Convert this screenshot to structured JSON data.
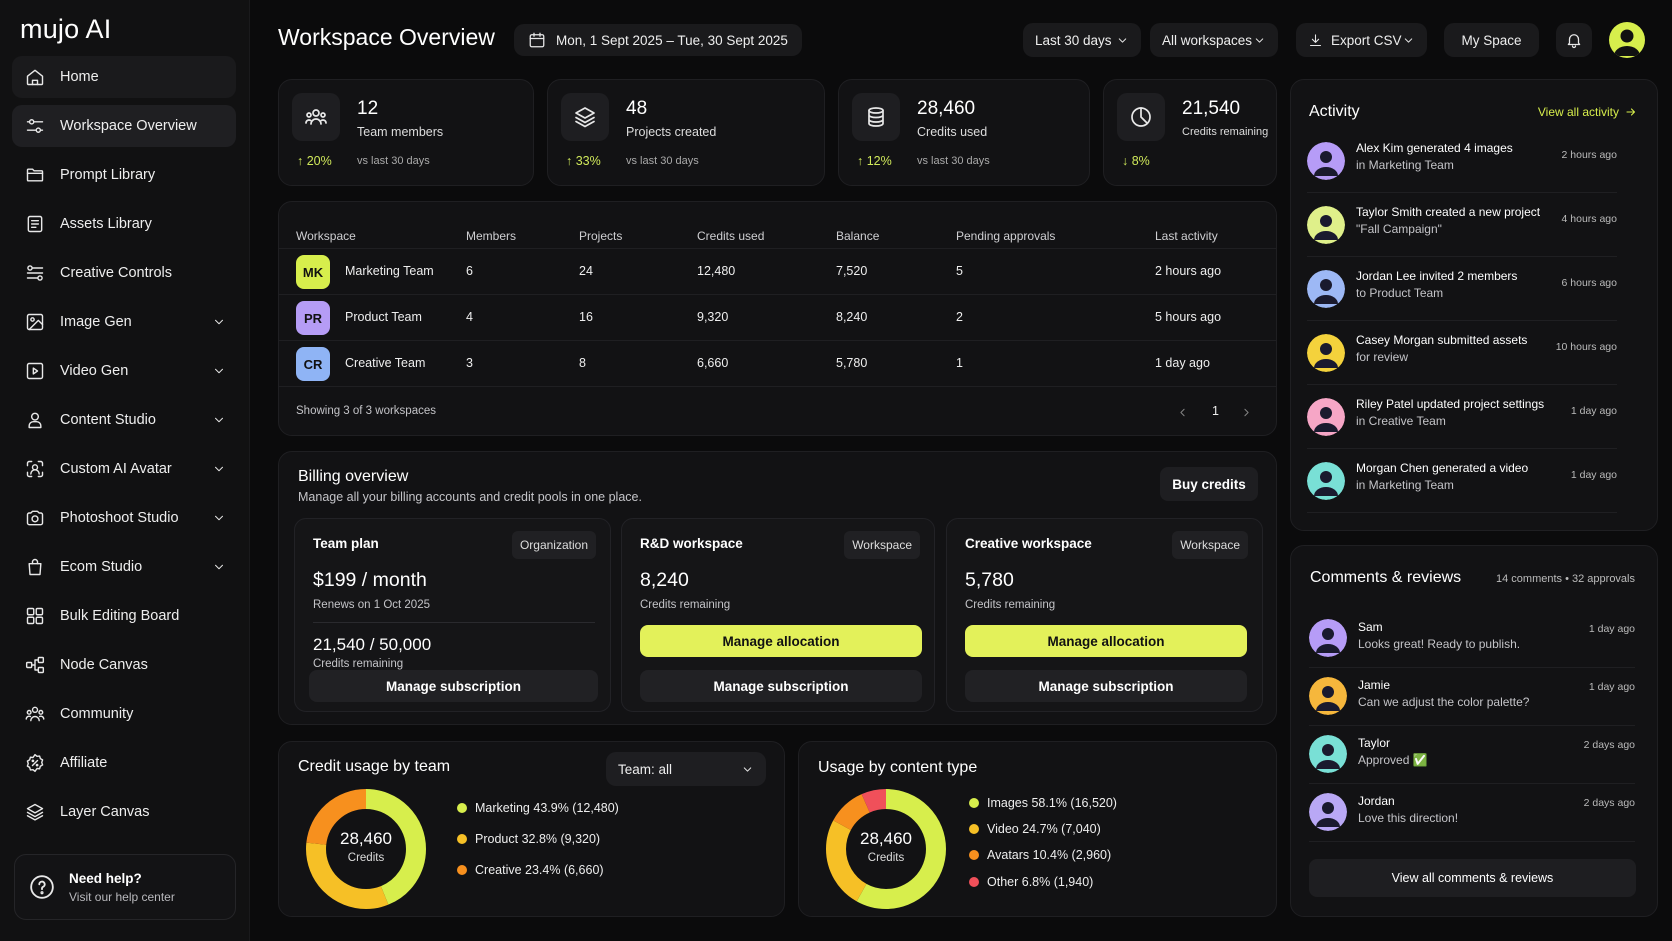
{
  "app": {
    "logo": "mujo AI"
  },
  "sidebar": {
    "items": [
      {
        "label": "Home",
        "icon": "home-icon"
      },
      {
        "label": "Workspace Overview",
        "icon": "sliders-icon"
      },
      {
        "label": "Prompt Library",
        "icon": "folder-icon"
      },
      {
        "label": "Assets Library",
        "icon": "document-icon"
      },
      {
        "label": "Creative Controls",
        "icon": "controls-icon"
      },
      {
        "label": "Image Gen",
        "icon": "image-icon"
      },
      {
        "label": "Video Gen",
        "icon": "video-icon"
      },
      {
        "label": "Content Studio",
        "icon": "person-icon"
      },
      {
        "label": "Custom AI Avatar",
        "icon": "avatar-scan-icon"
      },
      {
        "label": "Photoshoot Studio",
        "icon": "camera-icon"
      },
      {
        "label": "Ecom Studio",
        "icon": "bag-icon"
      },
      {
        "label": "Bulk Editing Board",
        "icon": "grid-icon"
      },
      {
        "label": "Node Canvas",
        "icon": "nodes-icon"
      },
      {
        "label": "Community",
        "icon": "community-icon"
      },
      {
        "label": "Affiliate",
        "icon": "percent-badge-icon"
      },
      {
        "label": "Layer Canvas",
        "icon": "layers-icon"
      }
    ],
    "help": {
      "title": "Need help?",
      "subtitle": "Visit our help center"
    }
  },
  "header": {
    "title": "Workspace Overview",
    "date_range": "Mon, 1 Sept 2025 – Tue, 30 Sept 2025",
    "period": "Last 30 days",
    "workspace_filter": "All workspaces",
    "export": "Export CSV",
    "my_space": "My Space"
  },
  "stats": [
    {
      "value": "12",
      "label": "Team members",
      "change": "20%",
      "direction": "up",
      "compare": "vs last 30 days"
    },
    {
      "value": "48",
      "label": "Projects created",
      "change": "33%",
      "direction": "up",
      "compare": "vs last 30 days"
    },
    {
      "value": "28,460",
      "label": "Credits used",
      "change": "12%",
      "direction": "up",
      "compare": "vs last 30 days"
    },
    {
      "value": "21,540",
      "label": "Credits remaining",
      "change": "8%",
      "direction": "down",
      "compare": ""
    }
  ],
  "table": {
    "columns": [
      "Workspace",
      "Members",
      "Projects",
      "Credits used",
      "Balance",
      "Pending approvals",
      "Last activity"
    ],
    "rows": [
      {
        "initials": "MK",
        "color": "#d7ee4c",
        "name": "Marketing Team",
        "members": "6",
        "projects": "24",
        "credits": "12,480",
        "balance": "7,520",
        "pending": "5",
        "last": "2 hours ago"
      },
      {
        "initials": "PR",
        "color": "#b59cf5",
        "name": "Product Team",
        "members": "4",
        "projects": "16",
        "credits": "9,320",
        "balance": "8,240",
        "pending": "2",
        "last": "5 hours ago"
      },
      {
        "initials": "CR",
        "color": "#8fb4f5",
        "name": "Creative Team",
        "members": "3",
        "projects": "8",
        "credits": "6,660",
        "balance": "5,780",
        "pending": "1",
        "last": "1 day ago"
      }
    ],
    "footer": "Showing 3 of 3 workspaces",
    "page": "1"
  },
  "billing": {
    "title": "Billing overview",
    "subtitle": "Manage all your billing accounts and credit pools in one place.",
    "buy_label": "Buy credits",
    "team_plan": {
      "title": "Team plan",
      "tag": "Organization",
      "price": "$199 / month",
      "renews": "Renews on 1 Oct 2025",
      "credits": "21,540 / 50,000",
      "credits_label": "Credits remaining",
      "button": "Manage subscription"
    },
    "rd": {
      "title": "R&D workspace",
      "tag": "Workspace",
      "credits": "8,240",
      "credits_label": "Credits remaining",
      "allocation": "Manage allocation",
      "button": "Manage subscription"
    },
    "creative": {
      "title": "Creative workspace",
      "tag": "Workspace",
      "credits": "5,780",
      "credits_label": "Credits remaining",
      "allocation": "Manage allocation",
      "button": "Manage subscription"
    }
  },
  "credit_usage": {
    "title": "Credit usage by team",
    "filter": "Team: all",
    "center_value": "28,460",
    "center_label": "Credits",
    "legend": [
      {
        "label": "Marketing",
        "stat": "43.9% (12,480)",
        "color": "#d7ee4c"
      },
      {
        "label": "Product",
        "stat": "32.8% (9,320)",
        "color": "#f6c026"
      },
      {
        "label": "Creative",
        "stat": "23.4% (6,660)",
        "color": "#f7901e"
      }
    ]
  },
  "content_usage": {
    "title": "Usage by content type",
    "center_value": "28,460",
    "center_label": "Credits",
    "legend": [
      {
        "label": "Images",
        "stat": "58.1% (16,520)",
        "color": "#d7ee4c"
      },
      {
        "label": "Video",
        "stat": "24.7% (7,040)",
        "color": "#f6c026"
      },
      {
        "label": "Avatars",
        "stat": "10.4% (2,960)",
        "color": "#f7901e"
      },
      {
        "label": "Other",
        "stat": "6.8% (1,940)",
        "color": "#f0505a"
      }
    ]
  },
  "chart_data": [
    {
      "type": "pie",
      "title": "Credit usage by team",
      "categories": [
        "Marketing",
        "Product",
        "Creative"
      ],
      "values": [
        12480,
        9320,
        6660
      ],
      "percent": [
        43.9,
        32.8,
        23.4
      ],
      "total": 28460
    },
    {
      "type": "pie",
      "title": "Usage by content type",
      "categories": [
        "Images",
        "Video",
        "Avatars",
        "Other"
      ],
      "values": [
        16520,
        7040,
        2960,
        1940
      ],
      "percent": [
        58.1,
        24.7,
        10.4,
        6.8
      ],
      "total": 28460
    }
  ],
  "activity": {
    "title": "Activity",
    "view_all": "View all activity",
    "items": [
      {
        "name": "Alex Kim",
        "action": "generated 4 images",
        "detail": "in Marketing Team",
        "time": "2 hours ago",
        "color": "#b69cf7"
      },
      {
        "name": "Taylor Smith",
        "action": "created a new project",
        "detail": "\"Fall Campaign\"",
        "time": "4 hours ago",
        "color": "#dff08a"
      },
      {
        "name": "Jordan Lee",
        "action": "invited 2 members",
        "detail": "to Product Team",
        "time": "6 hours ago",
        "color": "#9db8f5"
      },
      {
        "name": "Casey Morgan",
        "action": "submitted assets",
        "detail": "for review",
        "time": "10 hours ago",
        "color": "#f4d23c"
      },
      {
        "name": "Riley Patel",
        "action": "updated project settings",
        "detail": "in Creative Team",
        "time": "1 day ago",
        "color": "#f6a6c6"
      },
      {
        "name": "Morgan Chen",
        "action": "generated a video",
        "detail": "in Marketing Team",
        "time": "1 day ago",
        "color": "#79e0d6"
      }
    ]
  },
  "comments": {
    "title": "Comments & reviews",
    "summary": "14 comments • 32 approvals",
    "items": [
      {
        "name": "Sam",
        "text": "Looks great! Ready to publish.",
        "time": "1 day ago",
        "color": "#b69cf7"
      },
      {
        "name": "Jamie",
        "text": "Can we adjust the color palette?",
        "time": "1 day ago",
        "color": "#f6b73c"
      },
      {
        "name": "Taylor",
        "text": "Approved ✅",
        "time": "2 days ago",
        "color": "#79e0d6"
      },
      {
        "name": "Jordan",
        "text": "Love this direction!",
        "time": "2 days ago",
        "color": "#b9a8f5"
      }
    ],
    "view_all": "View all comments & reviews"
  }
}
